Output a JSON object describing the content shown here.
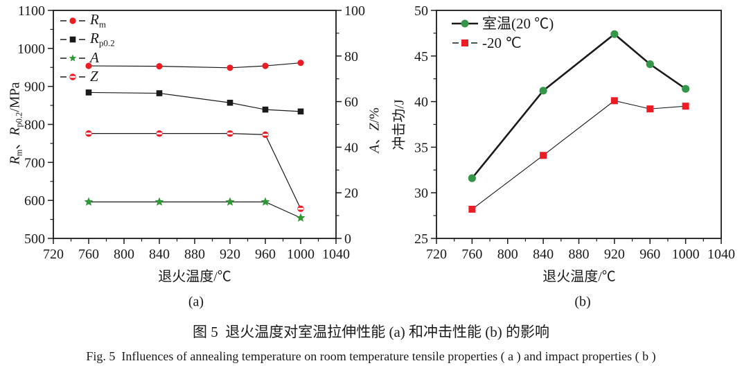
{
  "caption": {
    "chinese": "图 5  退火温度对室温拉伸性能 (a) 和冲击性能 (b) 的影响",
    "english": "Fig. 5  Influences of annealing temperature on room temperature tensile properties ( a ) and impact properties ( b )"
  },
  "colors": {
    "red": "#ed1c24",
    "green_star": "#2e9932",
    "green_circle": "#35964a",
    "line_black": "#1a1a1a"
  },
  "chart_data": [
    {
      "id": "a",
      "type": "line",
      "sublabel": "(a)",
      "xlabel": "退火温度/℃",
      "ylabel_left_segments": [
        {
          "text": "R",
          "italic": true
        },
        {
          "text": "m",
          "sub": true
        },
        {
          "text": "、"
        },
        {
          "text": "R",
          "italic": true
        },
        {
          "text": "p0.2",
          "sub": true
        },
        {
          "text": "/MPa"
        }
      ],
      "ylabel_right_segments": [
        {
          "text": "A",
          "italic": true
        },
        {
          "text": "、"
        },
        {
          "text": "Z",
          "italic": true
        },
        {
          "text": "/%"
        }
      ],
      "xlim": [
        720,
        1040
      ],
      "x_major": 40,
      "x_minor": 20,
      "left_axis": {
        "lim": [
          500,
          1100
        ],
        "major": 100,
        "minor": 50
      },
      "right_axis": {
        "lim": [
          0,
          100
        ],
        "major": 20,
        "minor": 10
      },
      "grid": false,
      "legend_position": "top-left",
      "x": [
        760,
        840,
        920,
        960,
        1000
      ],
      "series": [
        {
          "name": "Rm",
          "legend_segments": [
            {
              "text": "R",
              "italic": true
            },
            {
              "text": "m",
              "sub": true
            }
          ],
          "axis": "left",
          "marker": "circle",
          "color": "#ed1c24",
          "line_color": "#1a1a1a",
          "line_width": 1.2,
          "legend_line": "dash",
          "values": [
            954,
            953,
            949,
            954,
            962
          ]
        },
        {
          "name": "Rp0.2",
          "legend_segments": [
            {
              "text": "R",
              "italic": true
            },
            {
              "text": "p0.2",
              "sub": true
            }
          ],
          "axis": "left",
          "marker": "square",
          "color": "#1a1a1a",
          "line_color": "#1a1a1a",
          "line_width": 1.2,
          "legend_line": "dash",
          "values": [
            884,
            882,
            857,
            839,
            834
          ]
        },
        {
          "name": "A",
          "legend_segments": [
            {
              "text": "A",
              "italic": true
            }
          ],
          "axis": "right",
          "marker": "star",
          "color": "#2e9932",
          "line_color": "#1a1a1a",
          "line_width": 1.2,
          "legend_line": "dash",
          "values": [
            16,
            16,
            16,
            16,
            9
          ]
        },
        {
          "name": "Z",
          "legend_segments": [
            {
              "text": "Z",
              "italic": true
            }
          ],
          "axis": "right",
          "marker": "open-circle",
          "color": "#ed1c24",
          "line_color": "#1a1a1a",
          "line_width": 1.2,
          "legend_line": "dash",
          "values": [
            46,
            46,
            46,
            45.5,
            13
          ]
        }
      ]
    },
    {
      "id": "b",
      "type": "line",
      "sublabel": "(b)",
      "xlabel": "退火温度/℃",
      "ylabel": "冲击功/J",
      "xlim": [
        720,
        1040
      ],
      "x_major": 40,
      "x_minor": 20,
      "left_axis": {
        "lim": [
          25,
          50
        ],
        "major": 5,
        "minor": 2.5
      },
      "grid": false,
      "legend_position": "top-left",
      "x": [
        760,
        840,
        920,
        960,
        1000
      ],
      "series": [
        {
          "name": "室温(20 ℃)",
          "legend_segments": [
            {
              "text": "室温(20 ℃)"
            }
          ],
          "axis": "left",
          "marker": "circle",
          "color": "#35964a",
          "line_color": "#1a1a1a",
          "line_width": 2.6,
          "legend_line": "solid",
          "values": [
            31.6,
            41.2,
            47.4,
            44.1,
            41.4
          ]
        },
        {
          "name": "-20 ℃",
          "legend_segments": [
            {
              "text": "-20 ℃"
            }
          ],
          "axis": "left",
          "marker": "square",
          "color": "#ed1c24",
          "line_color": "#1a1a1a",
          "line_width": 1.1,
          "legend_line": "dash",
          "values": [
            28.2,
            34.1,
            40.1,
            39.2,
            39.5
          ]
        }
      ]
    }
  ]
}
